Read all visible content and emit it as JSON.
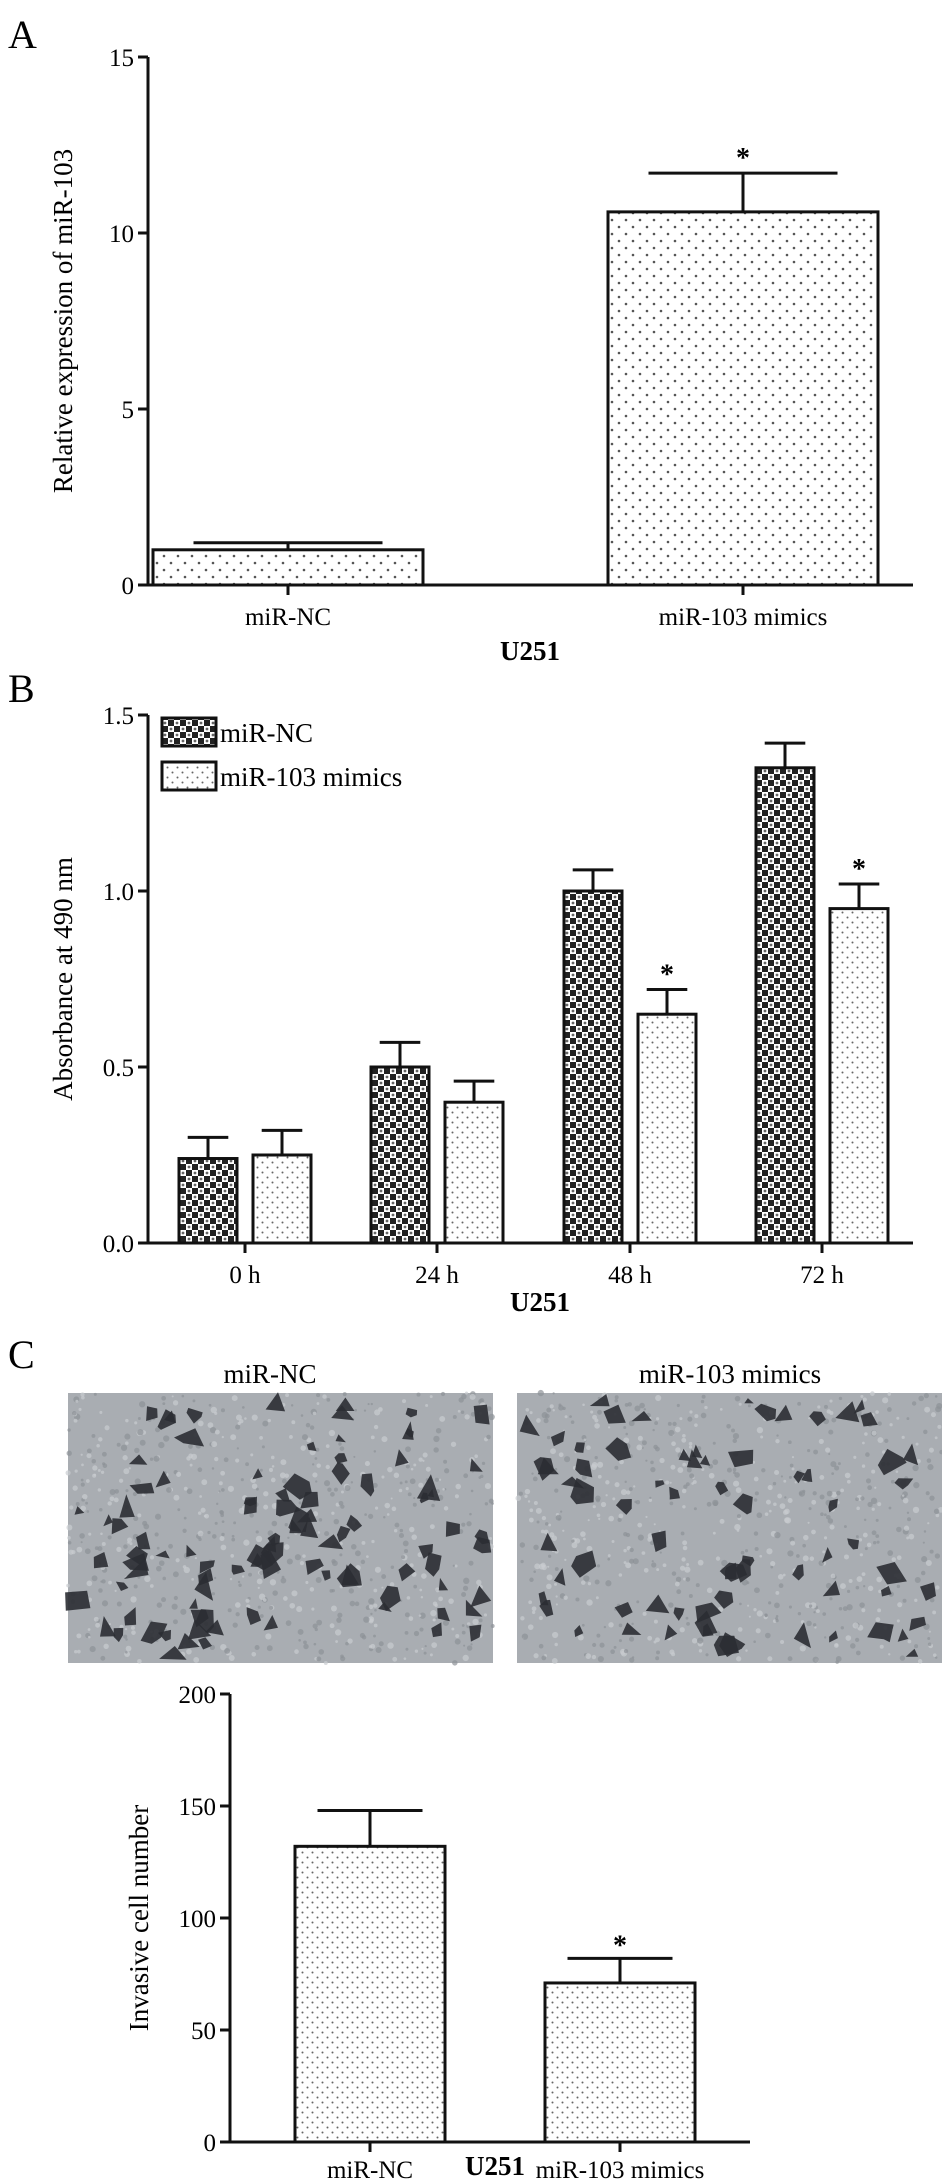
{
  "panels": {
    "A": {
      "label": "A",
      "chart_data": {
        "type": "bar",
        "categories": [
          "miR-NC",
          "miR-103 mimics"
        ],
        "values": [
          1.0,
          10.6
        ],
        "errors": [
          0.2,
          1.1
        ],
        "significance": [
          "",
          "*"
        ],
        "ylabel": "Relative expression of miR-103",
        "xlabel": "U251",
        "ylim": [
          0,
          15
        ],
        "yticks": [
          0,
          5,
          10,
          15
        ],
        "grid": false
      }
    },
    "B": {
      "label": "B",
      "chart_data": {
        "type": "bar",
        "categories": [
          "0 h",
          "24 h",
          "48 h",
          "72 h"
        ],
        "series": [
          {
            "name": "miR-NC",
            "values": [
              0.24,
              0.5,
              1.0,
              1.35
            ],
            "errors": [
              0.06,
              0.07,
              0.06,
              0.07
            ],
            "significance": [
              "",
              "",
              "",
              ""
            ]
          },
          {
            "name": "miR-103 mimics",
            "values": [
              0.25,
              0.4,
              0.65,
              0.95
            ],
            "errors": [
              0.07,
              0.06,
              0.07,
              0.07
            ],
            "significance": [
              "",
              "",
              "*",
              "*"
            ]
          }
        ],
        "ylabel": "Absorbance at 490 nm",
        "xlabel": "U251",
        "ylim": [
          0,
          1.5
        ],
        "yticks": [
          "0.0",
          "0.5",
          "1.0",
          "1.5"
        ],
        "legend": "top-left",
        "grid": false
      }
    },
    "C": {
      "label": "C",
      "images": [
        {
          "title": "miR-NC",
          "cell_density": "high"
        },
        {
          "title": "miR-103 mimics",
          "cell_density": "low"
        }
      ],
      "chart_data": {
        "type": "bar",
        "categories": [
          "miR-NC",
          "miR-103 mimics"
        ],
        "values": [
          132,
          71
        ],
        "errors": [
          16,
          11
        ],
        "significance": [
          "",
          "*"
        ],
        "ylabel": "Invasive cell number",
        "xlabel": "U251",
        "ylim": [
          0,
          200
        ],
        "yticks": [
          0,
          50,
          100,
          150,
          200
        ],
        "grid": false
      }
    }
  },
  "colors": {
    "axis": "#111111",
    "bar_fill": "#ffffff",
    "nc_pattern": "#222222",
    "mimic_dots": "#444444",
    "micro_bg": "#a9adb2",
    "cell": "#2b2d33"
  }
}
